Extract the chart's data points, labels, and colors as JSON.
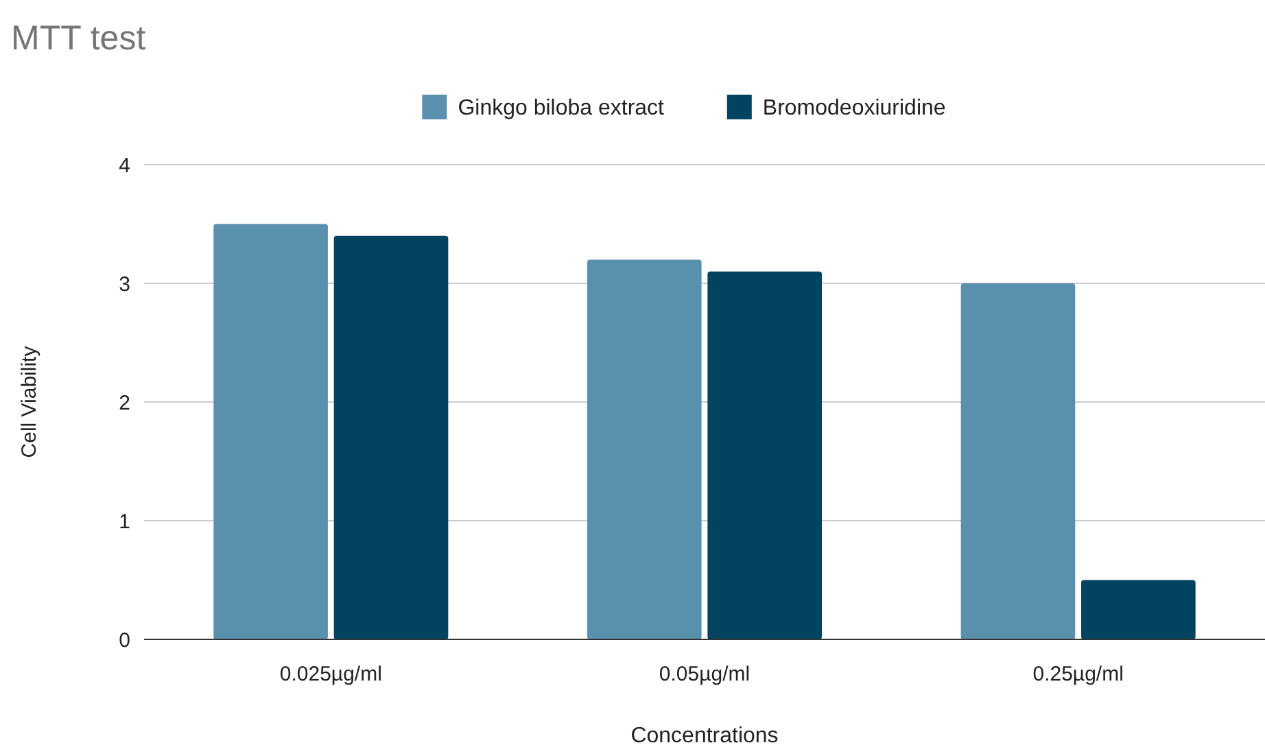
{
  "chart_data": {
    "type": "bar",
    "title": "MTT test",
    "xlabel": "Concentrations",
    "ylabel": "Cell Viability",
    "categories": [
      "0.025µg/ml",
      "0.05µg/ml",
      "0.25µg/ml"
    ],
    "series": [
      {
        "name": "Ginkgo biloba extract",
        "color": "#5990ae",
        "values": [
          3.5,
          3.2,
          3.0
        ]
      },
      {
        "name": "Bromodeoxiuridine",
        "color": "#024460",
        "values": [
          3.4,
          3.1,
          0.5
        ]
      }
    ],
    "ylim": [
      0,
      4
    ],
    "yticks": [
      0,
      1,
      2,
      3,
      4
    ],
    "grid": "y",
    "legend": "top"
  }
}
